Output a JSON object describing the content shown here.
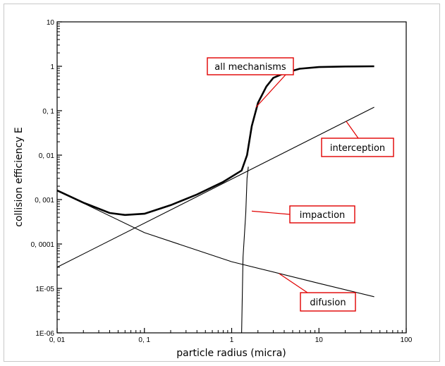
{
  "chart_data": {
    "type": "line",
    "title": "",
    "xlabel": "particle radius (micra)",
    "ylabel": "collision efficiency E",
    "xscale": "log",
    "yscale": "log",
    "xlim": [
      0.01,
      100
    ],
    "ylim": [
      1e-06,
      10
    ],
    "grid": false,
    "x_ticks": [
      {
        "value": 0.01,
        "label": "0, 01"
      },
      {
        "value": 0.1,
        "label": "0, 1"
      },
      {
        "value": 1,
        "label": "1"
      },
      {
        "value": 10,
        "label": "10"
      },
      {
        "value": 100,
        "label": "100"
      }
    ],
    "y_ticks": [
      {
        "value": 10,
        "label": "10"
      },
      {
        "value": 1,
        "label": "1"
      },
      {
        "value": 0.1,
        "label": "0, 1"
      },
      {
        "value": 0.01,
        "label": "0, 01"
      },
      {
        "value": 0.001,
        "label": "0, 001"
      },
      {
        "value": 0.0001,
        "label": "0, 0001"
      },
      {
        "value": 1e-05,
        "label": "1E-05"
      },
      {
        "value": 1e-06,
        "label": "1E-06"
      }
    ],
    "series": [
      {
        "name": "all mechanisms",
        "bold": true,
        "points": [
          [
            0.01,
            0.0016
          ],
          [
            0.02,
            0.00085
          ],
          [
            0.04,
            0.0005
          ],
          [
            0.06,
            0.00045
          ],
          [
            0.1,
            0.00048
          ],
          [
            0.2,
            0.00075
          ],
          [
            0.4,
            0.0013
          ],
          [
            0.8,
            0.0025
          ],
          [
            1.3,
            0.0045
          ],
          [
            1.5,
            0.01
          ],
          [
            1.7,
            0.045
          ],
          [
            2,
            0.15
          ],
          [
            2.5,
            0.35
          ],
          [
            3,
            0.55
          ],
          [
            4,
            0.7
          ],
          [
            6,
            0.88
          ],
          [
            10,
            0.96
          ],
          [
            20,
            0.99
          ],
          [
            43,
            1.0
          ]
        ]
      },
      {
        "name": "interception",
        "points": [
          [
            0.01,
            3e-05
          ],
          [
            43,
            0.12
          ]
        ]
      },
      {
        "name": "impaction",
        "points": [
          [
            1.3,
            1e-06
          ],
          [
            1.35,
            5e-05
          ],
          [
            1.45,
            0.0005
          ],
          [
            1.5,
            0.003
          ],
          [
            1.55,
            0.0055
          ]
        ]
      },
      {
        "name": "difusion",
        "points": [
          [
            0.01,
            0.0016
          ],
          [
            0.1,
            0.00018
          ],
          [
            1,
            4e-05
          ],
          [
            10,
            1.3e-05
          ],
          [
            43,
            6.5e-06
          ]
        ]
      }
    ],
    "annotations": [
      {
        "text": "all mechanisms",
        "series": "all mechanisms"
      },
      {
        "text": "interception",
        "series": "interception"
      },
      {
        "text": "impaction",
        "series": "impaction"
      },
      {
        "text": "difusion",
        "series": "difusion"
      }
    ],
    "annotation_box_color": "#e00000"
  }
}
